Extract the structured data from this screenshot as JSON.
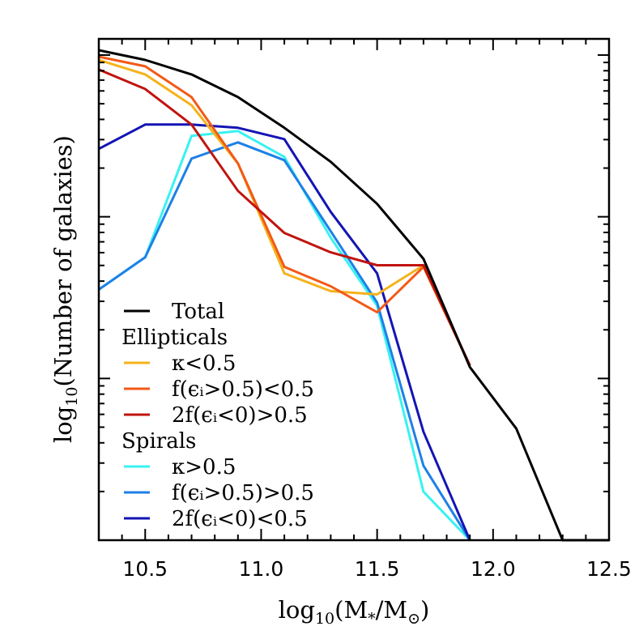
{
  "chart_data": {
    "type": "line",
    "xlabel": {
      "base": "log",
      "sub": "10",
      "open": "(M",
      "sub_star": "*",
      "slash": "/M",
      "sub_sun": "⊙",
      "close": ")"
    },
    "ylabel": {
      "base": "log",
      "sub": "10",
      "rest": "(Number of galaxies)"
    },
    "xlim": [
      10.3,
      12.5
    ],
    "ylim": [
      0,
      3.1
    ],
    "y_scale": "log",
    "x_ticks": [
      "10.5",
      "11.0",
      "11.5",
      "12.0",
      "12.5"
    ],
    "grid": false,
    "legend_placement": "bottom-left",
    "x": [
      10.3,
      10.5,
      10.7,
      10.9,
      11.1,
      11.3,
      11.5,
      11.7,
      11.9,
      12.1,
      12.3,
      12.5
    ],
    "series": [
      {
        "id": "total",
        "name": "Total",
        "color": "#000000",
        "values": [
          3.03,
          2.97,
          2.88,
          2.74,
          2.55,
          2.34,
          2.08,
          1.74,
          1.07,
          0.69,
          0.0,
          0.0
        ]
      },
      {
        "id": "ell_kappa",
        "color": "#f5b21b",
        "values": [
          2.97,
          2.88,
          2.69,
          2.33,
          1.65,
          1.54,
          1.52,
          1.7,
          1.08,
          null,
          null,
          null
        ]
      },
      {
        "id": "ell_f",
        "color": "#f25a18",
        "values": [
          2.99,
          2.93,
          2.74,
          2.33,
          1.69,
          1.57,
          1.41,
          1.69,
          1.08,
          null,
          null,
          null
        ]
      },
      {
        "id": "ell_2f",
        "color": "#c0140f",
        "values": [
          2.91,
          2.79,
          2.57,
          2.16,
          1.9,
          1.78,
          1.7,
          1.7,
          1.08,
          null,
          null,
          null
        ]
      },
      {
        "id": "sp_kappa",
        "color": "#38f2f2",
        "values": [
          1.55,
          1.75,
          2.5,
          2.53,
          2.37,
          1.87,
          1.45,
          0.3,
          0.0,
          null,
          null,
          null
        ]
      },
      {
        "id": "sp_f",
        "color": "#1e80e6",
        "values": [
          1.55,
          1.75,
          2.36,
          2.46,
          2.35,
          1.91,
          1.47,
          0.46,
          0.0,
          null,
          null,
          null
        ]
      },
      {
        "id": "sp_2f",
        "color": "#1414b4",
        "values": [
          2.42,
          2.57,
          2.57,
          2.55,
          2.48,
          2.03,
          1.65,
          0.67,
          0.0,
          null,
          null,
          null
        ]
      }
    ],
    "legend": [
      {
        "kind": "entry",
        "series": "total",
        "color": "#000000",
        "label": "Total"
      },
      {
        "kind": "header",
        "label": "Ellipticals"
      },
      {
        "kind": "entry",
        "series": "ell_kappa",
        "color": "#f5b21b",
        "label": "κ<0.5"
      },
      {
        "kind": "entry",
        "series": "ell_f",
        "color": "#f25a18",
        "label": "f(ϵᵢ>0.5)<0.5"
      },
      {
        "kind": "entry",
        "series": "ell_2f",
        "color": "#c0140f",
        "label": "2f(ϵᵢ<0)>0.5"
      },
      {
        "kind": "header",
        "label": "Spirals"
      },
      {
        "kind": "entry",
        "series": "sp_kappa",
        "color": "#38f2f2",
        "label": "κ>0.5"
      },
      {
        "kind": "entry",
        "series": "sp_f",
        "color": "#1e80e6",
        "label": "f(ϵᵢ>0.5)>0.5"
      },
      {
        "kind": "entry",
        "series": "sp_2f",
        "color": "#1414b4",
        "label": "2f(ϵᵢ<0)<0.5"
      }
    ]
  }
}
